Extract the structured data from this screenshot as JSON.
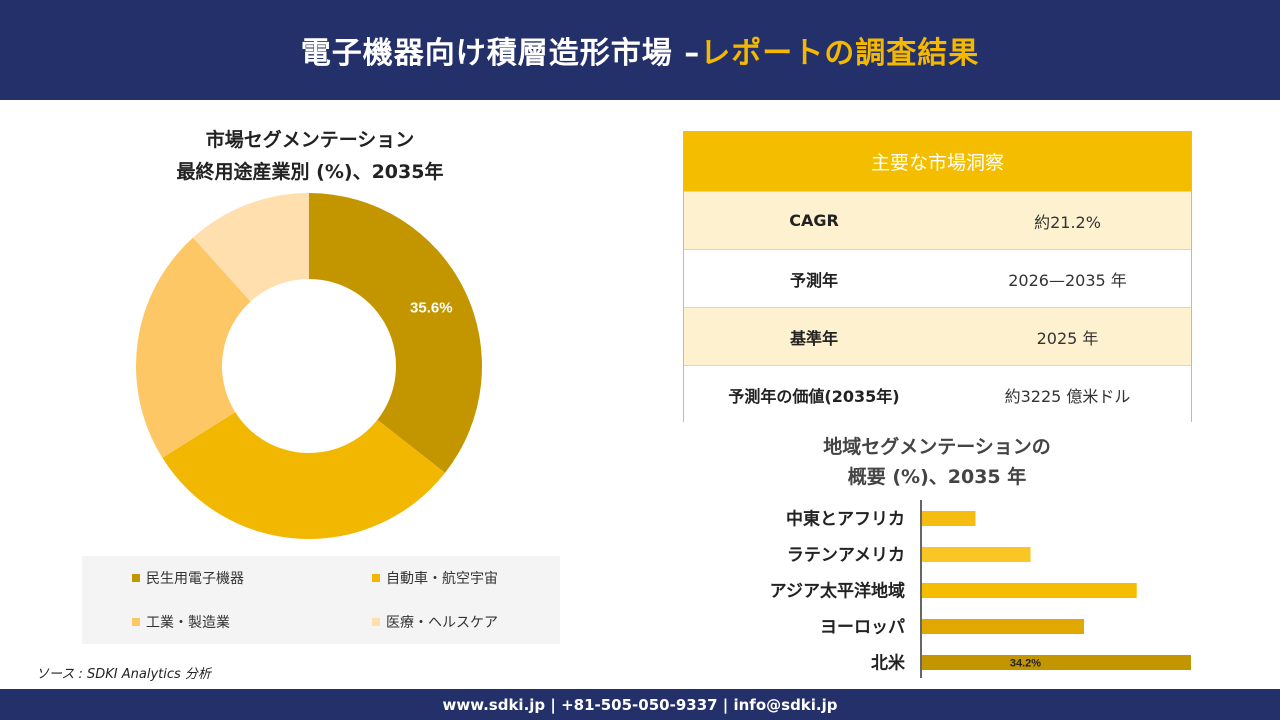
{
  "header": {
    "title_main": "電子機器向け積層造形市場 –",
    "title_accent": "レポートの調査結果"
  },
  "colors": {
    "header_bg": "#24306a",
    "accent": "#f5b800",
    "segments": [
      "#c39600",
      "#f2b700",
      "#fdc766",
      "#ffdfae"
    ],
    "bars": [
      "#f5bd12",
      "#f9c625",
      "#f5bd00",
      "#e0a800",
      "#c39600"
    ]
  },
  "chart_data": [
    {
      "type": "pie",
      "title": "市場セグメンテーション",
      "subtitle": "最終用途産業別 (%)、2035年",
      "categories": [
        "民生用電子機器",
        "自動車・航空宇宙",
        "工業・製造業",
        "医療・ヘルスケア"
      ],
      "values": [
        35.6,
        30.5,
        22.2,
        11.7
      ],
      "data_labels": [
        "35.6%",
        "",
        "",
        ""
      ],
      "legend_position": "bottom"
    },
    {
      "type": "bar",
      "orientation": "horizontal",
      "title": "地域セグメンテーションの",
      "subtitle": "概要 (%)、2035 年",
      "categories": [
        "中東とアフリカ",
        "ラテンアメリカ",
        "アジア太平洋地域",
        "ヨーロッパ",
        "北米"
      ],
      "values": [
        6.8,
        13.8,
        27.3,
        20.6,
        34.2
      ],
      "data_labels": [
        "",
        "",
        "",
        "",
        "34.2%"
      ],
      "xlim": [
        0,
        34.2
      ]
    }
  ],
  "insights": {
    "header": "主要な市場洞察",
    "rows": [
      {
        "label": "CAGR",
        "value": "約21.2%"
      },
      {
        "label": "予測年",
        "value": "2026—2035 年"
      },
      {
        "label": "基準年",
        "value": "2025 年"
      },
      {
        "label": "予測年の価値(2035年)",
        "value": "約3225 億米ドル"
      }
    ]
  },
  "source": "ソース : SDKI Analytics 分析",
  "footer": {
    "contact": "www.sdki.jp | +81-505-050-9337 | info@sdki.jp"
  }
}
